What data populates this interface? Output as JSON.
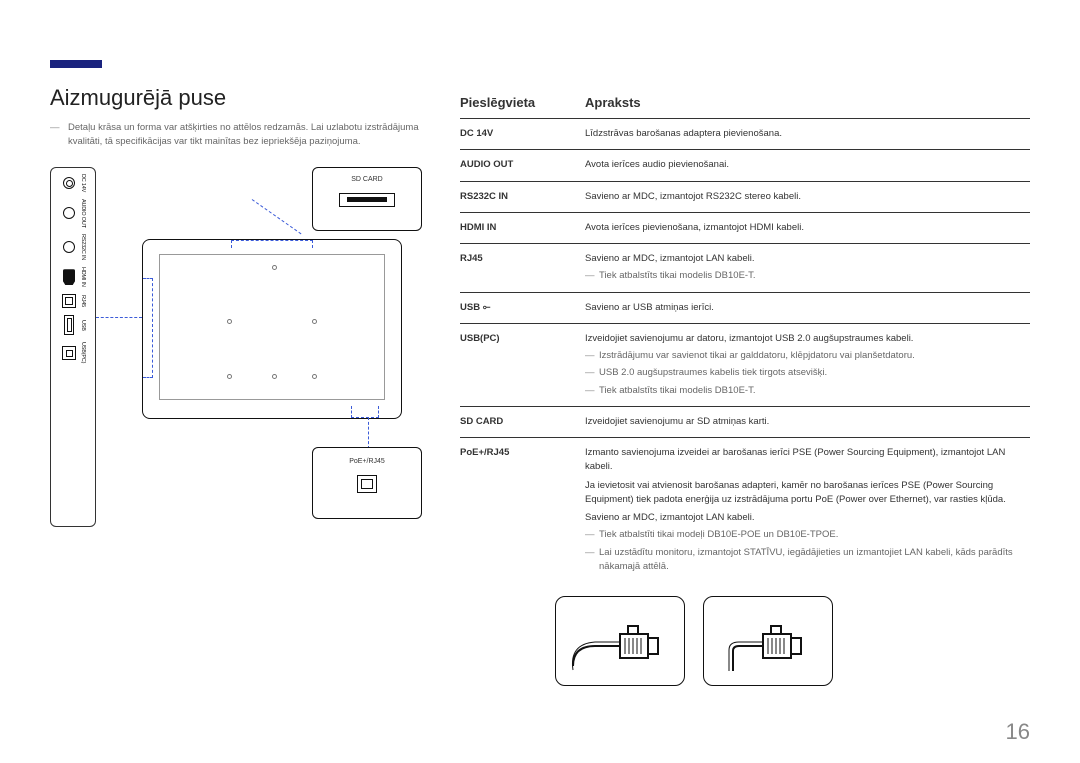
{
  "page_number": "16",
  "left": {
    "title": "Aizmugurējā puse",
    "intro": "Detaļu krāsa un forma var atšķirties no attēlos redzamās. Lai uzlabotu izstrādājuma kvalitāti, tā specifikācijas var tikt mainītas bez iepriekšēja paziņojuma.",
    "port_labels": {
      "dc": "DC 14V",
      "audio": "AUDIO OUT",
      "rs232": "RS232C IN",
      "hdmi": "HDMI IN",
      "rj45": "RJ45",
      "usb": "USB",
      "usbpc": "USB(PC)"
    },
    "callouts": {
      "sd": "SD CARD",
      "poe": "PoE+/RJ45"
    }
  },
  "table": {
    "head_port": "Pieslēgvieta",
    "head_desc": "Apraksts",
    "rows": [
      {
        "port": "DC 14V",
        "desc": "Līdzstrāvas barošanas adaptera pievienošana."
      },
      {
        "port": "AUDIO OUT",
        "desc": "Avota ierīces audio pievienošanai."
      },
      {
        "port": "RS232C IN",
        "desc": "Savieno ar MDC, izmantojot RS232C stereo kabeli."
      },
      {
        "port": "HDMI IN",
        "desc": "Avota ierīces pievienošana, izmantojot HDMI kabeli."
      },
      {
        "port": "RJ45",
        "desc": "Savieno ar MDC, izmantojot LAN kabeli.",
        "notes": [
          "Tiek atbalstīts tikai modelis DB10E-T."
        ]
      },
      {
        "port": "USB ⟜",
        "desc": "Savieno ar USB atmiņas ierīci."
      },
      {
        "port": "USB(PC)",
        "desc": "Izveidojiet savienojumu ar datoru, izmantojot USB 2.0 augšupstraumes kabeli.",
        "notes": [
          "Izstrādājumu var savienot tikai ar galddatoru, klēpjdatoru vai planšetdatoru.",
          "USB 2.0 augšupstraumes kabelis tiek tirgots atsevišķi.",
          "Tiek atbalstīts tikai modelis DB10E-T."
        ]
      },
      {
        "port": "SD CARD",
        "desc": "Izveidojiet savienojumu ar SD atmiņas karti."
      },
      {
        "port": "PoE+/RJ45",
        "desc": "Izmanto savienojuma izveidei ar barošanas ierīci PSE (Power Sourcing Equipment), izmantojot LAN kabeli.",
        "extra": [
          "Ja ievietosit vai atvienosit barošanas adapteri, kamēr no barošanas ierīces PSE (Power Sourcing Equipment) tiek padota enerģija uz izstrādājuma portu PoE (Power over Ethernet), var rasties kļūda.",
          "Savieno ar MDC, izmantojot LAN kabeli."
        ],
        "notes": [
          "Tiek atbalstīti tikai modeļi DB10E-POE un DB10E-TPOE.",
          "Lai uzstādītu monitoru, izmantojot STATĪVU, iegādājieties un izmantojiet LAN kabeli, kāds parādīts nākamajā attēlā."
        ]
      }
    ]
  }
}
